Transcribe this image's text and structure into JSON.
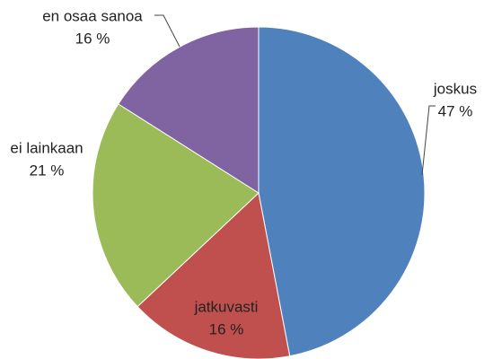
{
  "chart_data": {
    "type": "pie",
    "categories": [
      "joskus",
      "jatkuvasti",
      "ei lainkaan",
      "en osaa sanoa"
    ],
    "values": [
      47,
      16,
      21,
      16
    ],
    "value_labels": [
      "47 %",
      "16 %",
      "21 %",
      "16 %"
    ],
    "colors": [
      "#4f81bd",
      "#c0504d",
      "#9bbb59",
      "#8064a2"
    ]
  }
}
